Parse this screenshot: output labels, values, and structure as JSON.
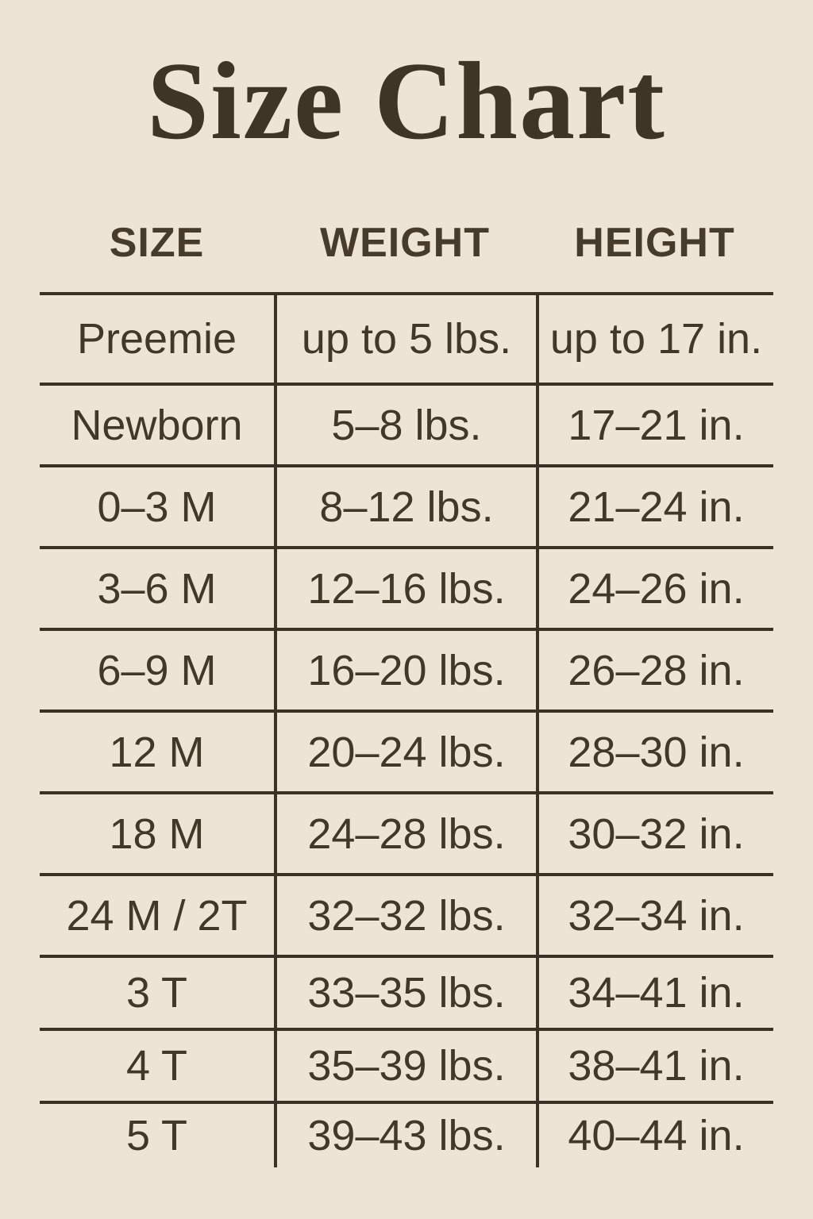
{
  "page": {
    "background_color": "#EDE4D5",
    "text_color": "#423828",
    "line_color": "#3B3226",
    "title_color": "#3F3526"
  },
  "title": "Size Chart",
  "table": {
    "headers": [
      "SIZE",
      "WEIGHT",
      "HEIGHT"
    ],
    "rows": [
      {
        "size": "Preemie",
        "weight": "up to 5 lbs.",
        "height": "up to 17 in."
      },
      {
        "size": "Newborn",
        "weight": "5–8 lbs.",
        "height": "17–21 in."
      },
      {
        "size": "0–3 M",
        "weight": "8–12 lbs.",
        "height": "21–24 in."
      },
      {
        "size": "3–6 M",
        "weight": "12–16 lbs.",
        "height": "24–26 in."
      },
      {
        "size": "6–9 M",
        "weight": "16–20 lbs.",
        "height": "26–28 in."
      },
      {
        "size": "12 M",
        "weight": "20–24 lbs.",
        "height": "28–30 in."
      },
      {
        "size": "18 M",
        "weight": "24–28 lbs.",
        "height": "30–32 in."
      },
      {
        "size": "24 M / 2T",
        "weight": "32–32 lbs.",
        "height": "32–34 in."
      },
      {
        "size": "3 T",
        "weight": "33–35 lbs.",
        "height": "34–41 in."
      },
      {
        "size": "4 T",
        "weight": "35–39 lbs.",
        "height": "38–41 in."
      },
      {
        "size": "5 T",
        "weight": "39–43 lbs.",
        "height": "40–44 in."
      }
    ]
  },
  "chart_data": {
    "type": "table",
    "title": "Size Chart",
    "columns": [
      "SIZE",
      "WEIGHT",
      "HEIGHT"
    ],
    "rows": [
      [
        "Preemie",
        "up to 5 lbs.",
        "up to 17 in."
      ],
      [
        "Newborn",
        "5–8 lbs.",
        "17–21 in."
      ],
      [
        "0–3 M",
        "8–12 lbs.",
        "21–24 in."
      ],
      [
        "3–6 M",
        "12–16 lbs.",
        "24–26 in."
      ],
      [
        "6–9 M",
        "16–20 lbs.",
        "26–28 in."
      ],
      [
        "12 M",
        "20–24 lbs.",
        "28–30 in."
      ],
      [
        "18 M",
        "24–28 lbs.",
        "30–32 in."
      ],
      [
        "24 M / 2T",
        "32–32 lbs.",
        "32–34 in."
      ],
      [
        "3 T",
        "33–35 lbs.",
        "34–41 in."
      ],
      [
        "4 T",
        "35–39 lbs.",
        "38–41 in."
      ],
      [
        "5 T",
        "39–43 lbs.",
        "40–44 in."
      ]
    ]
  }
}
